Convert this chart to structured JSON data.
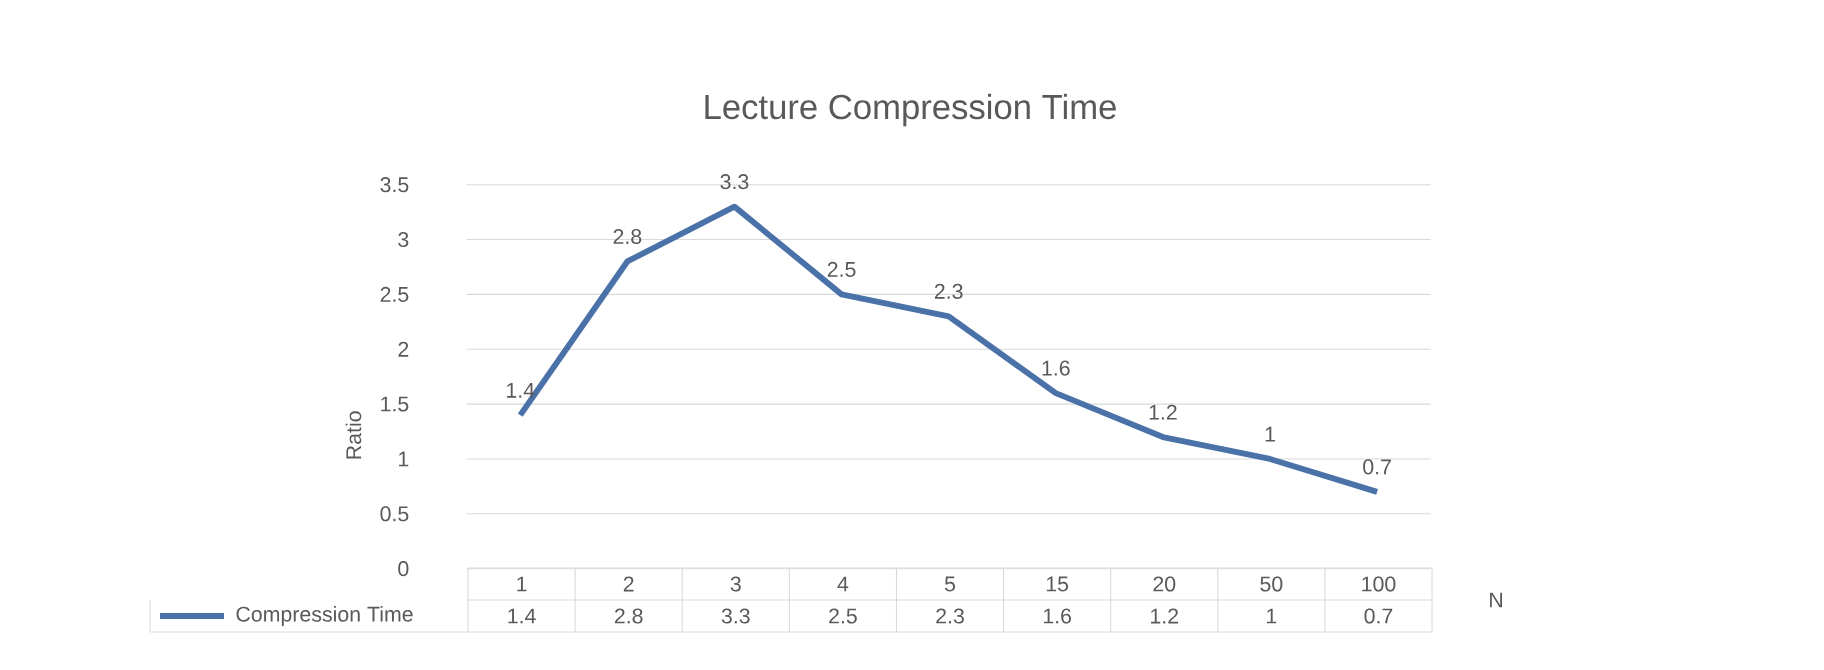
{
  "chart_data": {
    "type": "line",
    "title": "Lecture Compression Time",
    "xlabel": "N",
    "ylabel": "Ratio",
    "categories": [
      "1",
      "2",
      "3",
      "4",
      "5",
      "15",
      "20",
      "50",
      "100"
    ],
    "series": [
      {
        "name": "Compression Time",
        "color": "#4a72a8",
        "values": [
          1.4,
          2.8,
          3.3,
          2.5,
          2.3,
          1.6,
          1.2,
          1,
          0.7
        ]
      }
    ],
    "annotations": [
      {
        "text": "1.4",
        "x": "1",
        "y": 1.4
      },
      {
        "text": "2.8",
        "x": "2",
        "y": 2.8
      },
      {
        "text": "3.3",
        "x": "3",
        "y": 3.3
      },
      {
        "text": "2.5",
        "x": "4",
        "y": 2.5
      },
      {
        "text": "2.3",
        "x": "5",
        "y": 2.3
      },
      {
        "text": "1.6",
        "x": "15",
        "y": 1.6
      },
      {
        "text": "1.2",
        "x": "20",
        "y": 1.2
      },
      {
        "text": "1",
        "x": "50",
        "y": 1
      },
      {
        "text": "0.7",
        "x": "100",
        "y": 0.7
      }
    ],
    "ylim": [
      0,
      3.5
    ],
    "yticks": [
      0,
      0.5,
      1,
      1.5,
      2,
      2.5,
      3,
      3.5
    ],
    "grid": "y",
    "legend": "bottom",
    "data_labels": true,
    "marker": "none",
    "line_style": "solid"
  }
}
